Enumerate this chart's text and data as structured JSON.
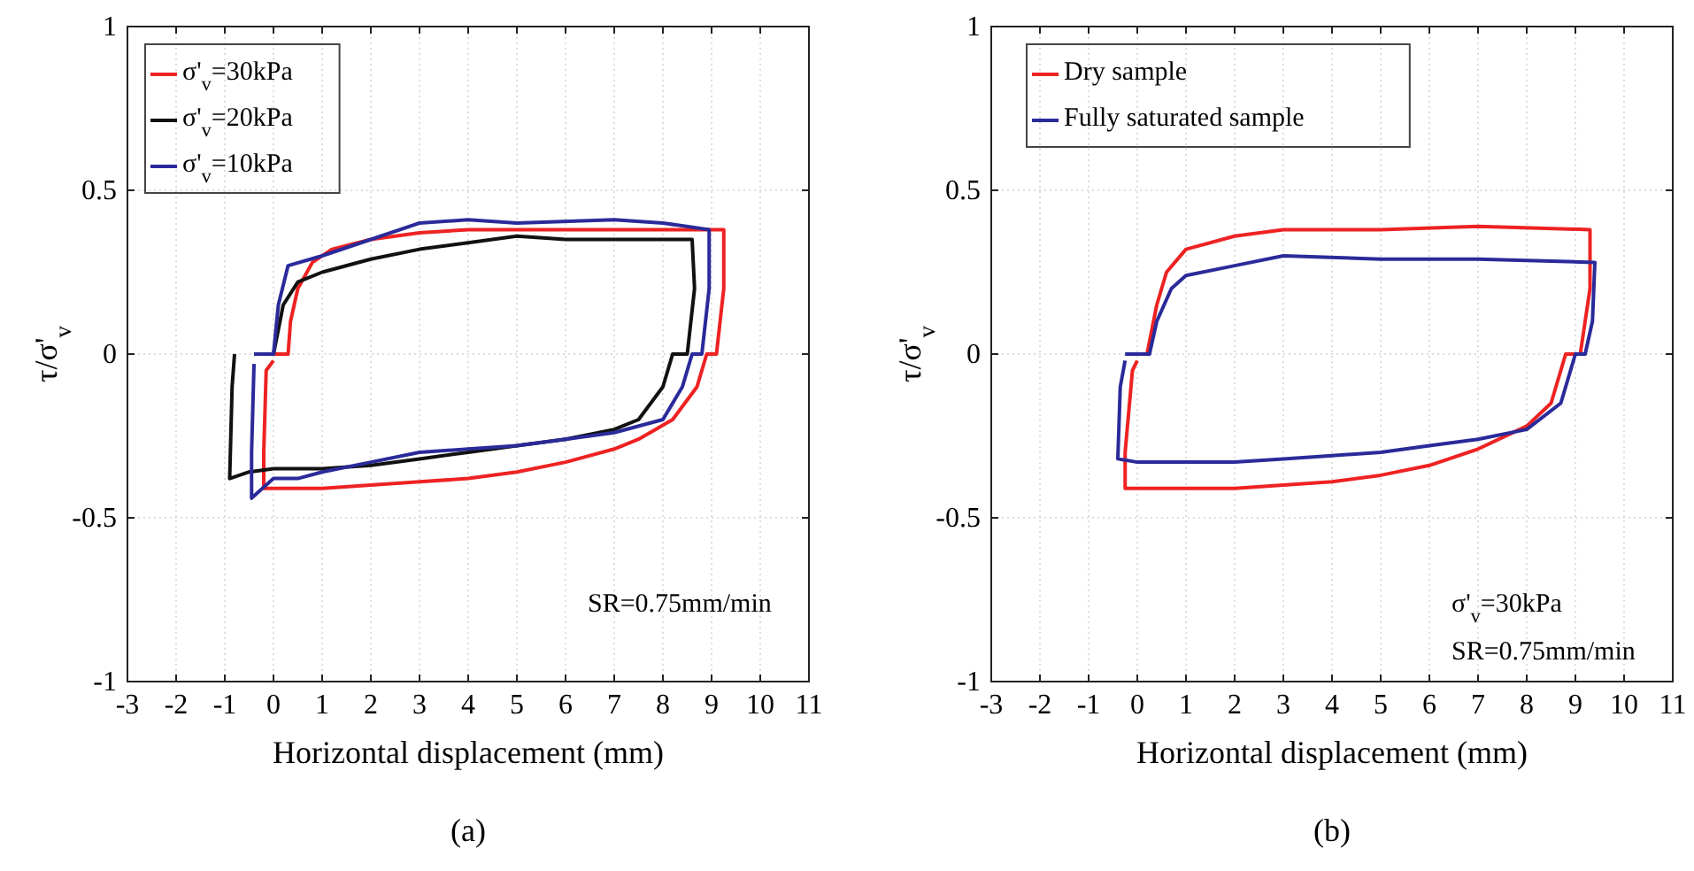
{
  "chart_data": [
    {
      "type": "line",
      "title": "(a)",
      "xlabel": "Horizontal displacement (mm)",
      "ylabel": "τ/σ'$_{v}$",
      "xlim": [
        -3,
        11
      ],
      "xticks": [
        -3,
        -2,
        -1,
        0,
        1,
        2,
        3,
        4,
        5,
        6,
        7,
        8,
        9,
        10,
        11
      ],
      "ylim": [
        -1,
        1
      ],
      "yticks": [
        -1,
        -0.5,
        0,
        0.5,
        1
      ],
      "grid": true,
      "legend": "top left",
      "line_style": "solid",
      "annotations": [
        "SR=0.75mm/min"
      ],
      "series": [
        {
          "name": "σ'$_{v}$=30kPa",
          "color": "#ee2222",
          "x": [
            0,
            0.3,
            0.35,
            0.5,
            0.8,
            1.2,
            2,
            3,
            4,
            6,
            8,
            9.25,
            9.25,
            9.1,
            8.9,
            8.7,
            8.2,
            7.5,
            7,
            6,
            5,
            4,
            3,
            2,
            1,
            -0.2,
            -0.2,
            -0.15,
            0
          ],
          "values": [
            0,
            0,
            0.1,
            0.2,
            0.28,
            0.32,
            0.35,
            0.37,
            0.38,
            0.38,
            0.38,
            0.38,
            0.2,
            0,
            0,
            -0.1,
            -0.2,
            -0.26,
            -0.29,
            -0.33,
            -0.36,
            -0.38,
            -0.39,
            -0.4,
            -0.41,
            -0.41,
            -0.3,
            -0.05,
            -0.02
          ]
        },
        {
          "name": "σ'$_{v}$=20kPa",
          "color": "#111111",
          "x": [
            0,
            0.2,
            0.5,
            1,
            2,
            3,
            4,
            5,
            6,
            7,
            8.6,
            8.65,
            8.5,
            8.2,
            8,
            7.5,
            7,
            6,
            5,
            4,
            3,
            2,
            1,
            0,
            -0.5,
            -0.9,
            -0.85,
            -0.8
          ],
          "values": [
            0,
            0.15,
            0.22,
            0.25,
            0.29,
            0.32,
            0.34,
            0.36,
            0.35,
            0.35,
            0.35,
            0.2,
            0,
            0,
            -0.1,
            -0.2,
            -0.23,
            -0.26,
            -0.28,
            -0.3,
            -0.32,
            -0.34,
            -0.35,
            -0.35,
            -0.36,
            -0.38,
            -0.1,
            0
          ]
        },
        {
          "name": "σ'$_{v}$=10kPa",
          "color": "#2a2a9a",
          "x": [
            -0.4,
            0,
            0.1,
            0.3,
            1,
            2,
            3,
            4,
            5,
            7,
            8,
            8.95,
            8.95,
            8.8,
            8.6,
            8.4,
            8,
            7,
            6,
            5,
            4,
            3,
            2,
            1,
            0.5,
            0,
            -0.45,
            -0.45,
            -0.4
          ],
          "values": [
            0,
            0,
            0.15,
            0.27,
            0.3,
            0.35,
            0.4,
            0.41,
            0.4,
            0.41,
            0.4,
            0.38,
            0.2,
            0,
            0,
            -0.1,
            -0.2,
            -0.24,
            -0.26,
            -0.28,
            -0.29,
            -0.3,
            -0.33,
            -0.36,
            -0.38,
            -0.38,
            -0.44,
            -0.3,
            -0.03
          ]
        }
      ]
    },
    {
      "type": "line",
      "title": "(b)",
      "xlabel": "Horizontal displacement (mm)",
      "ylabel": "τ/σ'$_{v}$",
      "xlim": [
        -3,
        11
      ],
      "xticks": [
        -3,
        -2,
        -1,
        0,
        1,
        2,
        3,
        4,
        5,
        6,
        7,
        8,
        9,
        10,
        11
      ],
      "ylim": [
        -1,
        1
      ],
      "yticks": [
        -1,
        -0.5,
        0,
        0.5,
        1
      ],
      "grid": true,
      "legend": "top left",
      "line_style": "solid",
      "annotations": [
        "σ'$_{v}$=30kPa",
        "SR=0.75mm/min"
      ],
      "series": [
        {
          "name": "Dry sample",
          "color": "#ee2222",
          "x": [
            0,
            0.2,
            0.4,
            0.6,
            1,
            2,
            3,
            5,
            7,
            9.3,
            9.3,
            9.1,
            8.8,
            8.5,
            8,
            7,
            6,
            5,
            4,
            2,
            0,
            -0.25,
            -0.25,
            -0.1,
            0
          ],
          "values": [
            0,
            0,
            0.15,
            0.25,
            0.32,
            0.36,
            0.38,
            0.38,
            0.39,
            0.38,
            0.2,
            0,
            0,
            -0.15,
            -0.22,
            -0.29,
            -0.34,
            -0.37,
            -0.39,
            -0.41,
            -0.41,
            -0.41,
            -0.3,
            -0.05,
            -0.02
          ]
        },
        {
          "name": "Fully saturated sample",
          "color": "#2a2a9a",
          "x": [
            -0.25,
            0,
            0.25,
            0.4,
            0.7,
            1,
            2,
            3,
            5,
            7,
            9.4,
            9.35,
            9.2,
            9,
            8.7,
            8,
            7,
            6,
            5,
            4,
            3,
            2,
            0,
            -0.4,
            -0.35,
            -0.25
          ],
          "values": [
            0,
            0,
            0,
            0.1,
            0.2,
            0.24,
            0.27,
            0.3,
            0.29,
            0.29,
            0.28,
            0.1,
            0,
            0,
            -0.15,
            -0.23,
            -0.26,
            -0.28,
            -0.3,
            -0.31,
            -0.32,
            -0.33,
            -0.33,
            -0.32,
            -0.1,
            -0.02
          ]
        }
      ]
    }
  ]
}
